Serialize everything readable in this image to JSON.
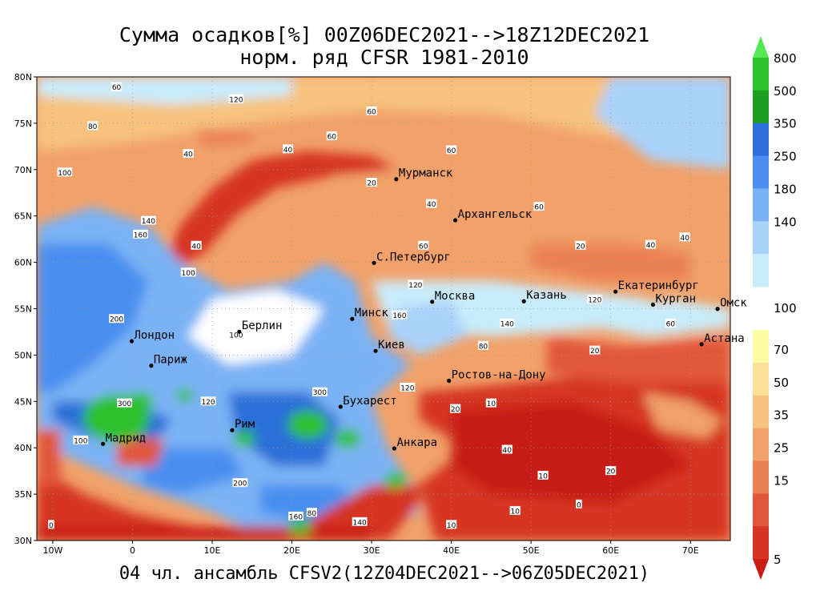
{
  "title": {
    "line1": "Сумма осадков[%] 00Z06DEC2021-->18Z12DEC2021",
    "line2": "норм. ряд CFSR 1981-2010"
  },
  "footer": "04 чл. ансамбль CFSV2(12Z04DEC2021-->06Z05DEC2021)",
  "axes": {
    "lat_labels": [
      "80N",
      "75N",
      "70N",
      "65N",
      "60N",
      "55N",
      "50N",
      "45N",
      "40N",
      "35N",
      "30N"
    ],
    "lon_labels": [
      "10W",
      "0",
      "10E",
      "20E",
      "30E",
      "40E",
      "50E",
      "60E",
      "70E"
    ],
    "lat_range": [
      30,
      80
    ],
    "lon_range": [
      -12,
      75
    ]
  },
  "colorbar": {
    "levels": [
      "800",
      "500",
      "350",
      "250",
      "180",
      "140",
      "100",
      "70",
      "50",
      "35",
      "25",
      "15",
      "5"
    ],
    "upper_colors": [
      "#55e855",
      "#2fc12f",
      "#1e9e1e",
      "#2c6fd8",
      "#4a8ff0",
      "#7ab2f5",
      "#a9d2fb",
      "#c9ecfb"
    ],
    "lower_colors": [
      "#fefca3",
      "#fbe095",
      "#f7c27d",
      "#f1a169",
      "#eb8052",
      "#e2573a",
      "#d63523",
      "#c81c14"
    ]
  },
  "cities": [
    {
      "name": "Мурманск",
      "lon": 33.1,
      "lat": 68.97
    },
    {
      "name": "Архангельск",
      "lon": 40.5,
      "lat": 64.54
    },
    {
      "name": "С.Петербург",
      "lon": 30.3,
      "lat": 59.94
    },
    {
      "name": "Екатеринбург",
      "lon": 60.6,
      "lat": 56.84
    },
    {
      "name": "Москва",
      "lon": 37.6,
      "lat": 55.75
    },
    {
      "name": "Казань",
      "lon": 49.1,
      "lat": 55.8
    },
    {
      "name": "Курган",
      "lon": 65.3,
      "lat": 55.44
    },
    {
      "name": "Минск",
      "lon": 27.56,
      "lat": 53.9
    },
    {
      "name": "Омск",
      "lon": 73.4,
      "lat": 54.98
    },
    {
      "name": "Берлин",
      "lon": 13.4,
      "lat": 52.52
    },
    {
      "name": "Лондон",
      "lon": -0.1,
      "lat": 51.5
    },
    {
      "name": "Киев",
      "lon": 30.5,
      "lat": 50.45
    },
    {
      "name": "Астана",
      "lon": 71.4,
      "lat": 51.17
    },
    {
      "name": "Париж",
      "lon": 2.35,
      "lat": 48.86
    },
    {
      "name": "Ростов-на-Дону",
      "lon": 39.7,
      "lat": 47.23
    },
    {
      "name": "Бухарест",
      "lon": 26.1,
      "lat": 44.43
    },
    {
      "name": "Рим",
      "lon": 12.5,
      "lat": 41.9
    },
    {
      "name": "Мадрид",
      "lon": -3.7,
      "lat": 40.42
    },
    {
      "name": "Анкара",
      "lon": 32.85,
      "lat": 39.93
    }
  ],
  "contour_labels": [
    {
      "t": "60",
      "lon": -2,
      "lat": 78.9
    },
    {
      "t": "120",
      "lon": 13,
      "lat": 77.6
    },
    {
      "t": "60",
      "lon": 30,
      "lat": 76.3
    },
    {
      "t": "80",
      "lon": -5,
      "lat": 74.7
    },
    {
      "t": "60",
      "lon": 25,
      "lat": 73.6
    },
    {
      "t": "40",
      "lon": 7,
      "lat": 71.7
    },
    {
      "t": "40",
      "lon": 19.5,
      "lat": 72.2
    },
    {
      "t": "60",
      "lon": 40,
      "lat": 72.1
    },
    {
      "t": "100",
      "lon": -8.5,
      "lat": 69.7
    },
    {
      "t": "20",
      "lon": 30,
      "lat": 68.6
    },
    {
      "t": "40",
      "lon": 37.5,
      "lat": 66.3
    },
    {
      "t": "60",
      "lon": 51,
      "lat": 66
    },
    {
      "t": "140",
      "lon": 2,
      "lat": 64.5
    },
    {
      "t": "160",
      "lon": 1,
      "lat": 63
    },
    {
      "t": "40",
      "lon": 8,
      "lat": 61.8
    },
    {
      "t": "100",
      "lon": 7,
      "lat": 58.9
    },
    {
      "t": "60",
      "lon": 36.5,
      "lat": 61.8
    },
    {
      "t": "120",
      "lon": 35.5,
      "lat": 57.6
    },
    {
      "t": "160",
      "lon": 33.5,
      "lat": 54.3
    },
    {
      "t": "140",
      "lon": 47,
      "lat": 53.4
    },
    {
      "t": "120",
      "lon": 58,
      "lat": 56
    },
    {
      "t": "40",
      "lon": 65,
      "lat": 61.9
    },
    {
      "t": "20",
      "lon": 56.2,
      "lat": 61.8
    },
    {
      "t": "40",
      "lon": 69.3,
      "lat": 62.7
    },
    {
      "t": "200",
      "lon": -2,
      "lat": 53.9
    },
    {
      "t": "100",
      "lon": 13,
      "lat": 52.2
    },
    {
      "t": "80",
      "lon": 44,
      "lat": 51
    },
    {
      "t": "20",
      "lon": 58,
      "lat": 50.5
    },
    {
      "t": "60",
      "lon": 67.5,
      "lat": 53.4
    },
    {
      "t": "120",
      "lon": 34.5,
      "lat": 46.5
    },
    {
      "t": "300",
      "lon": -1,
      "lat": 44.8
    },
    {
      "t": "120",
      "lon": 9.5,
      "lat": 45
    },
    {
      "t": "300",
      "lon": 23.5,
      "lat": 46
    },
    {
      "t": "20",
      "lon": 40.5,
      "lat": 44.2
    },
    {
      "t": "10",
      "lon": 45,
      "lat": 44.8
    },
    {
      "t": "40",
      "lon": 47,
      "lat": 39.8
    },
    {
      "t": "10",
      "lon": 51.5,
      "lat": 37
    },
    {
      "t": "20",
      "lon": 60,
      "lat": 37.5
    },
    {
      "t": "0",
      "lon": 56,
      "lat": 33.9
    },
    {
      "t": "100",
      "lon": -6.5,
      "lat": 40.8
    },
    {
      "t": "200",
      "lon": 13.5,
      "lat": 36.2
    },
    {
      "t": "140",
      "lon": 28.5,
      "lat": 32
    },
    {
      "t": "80",
      "lon": 22.5,
      "lat": 33
    },
    {
      "t": "160",
      "lon": 20.5,
      "lat": 32.6
    },
    {
      "t": "10",
      "lon": 48,
      "lat": 33.2
    },
    {
      "t": "0",
      "lon": -10.2,
      "lat": 31.7
    },
    {
      "t": "10",
      "lon": 40,
      "lat": 31.7
    }
  ],
  "legend_extra": "800"
}
